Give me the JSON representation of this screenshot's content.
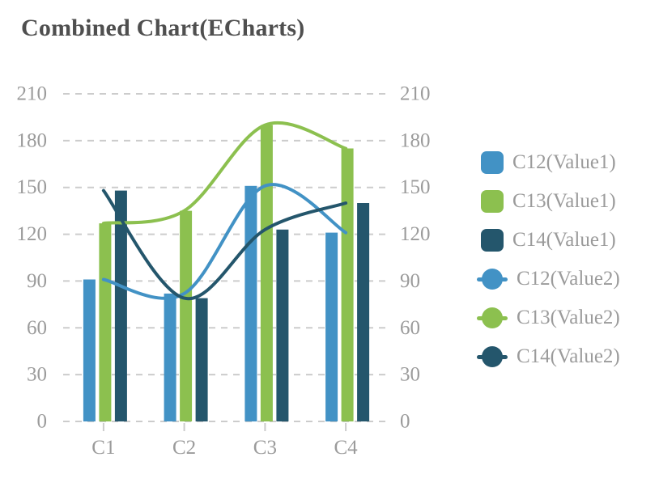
{
  "title": "Combined Chart(ECharts)",
  "colors": {
    "blue": "#4292c5",
    "green": "#8cc04f",
    "dark_teal": "#24566c",
    "grid": "#cccccc",
    "axis_text": "#9b9b9b",
    "title_text": "#4f4f4f"
  },
  "chart_data": {
    "type": "bar+line combo",
    "title": "Combined Chart(ECharts)",
    "categories": [
      "C1",
      "C2",
      "C3",
      "C4"
    ],
    "series": [
      {
        "name": "C12(Value1)",
        "type": "bar",
        "color": "#4292c5",
        "values": [
          91,
          82,
          151,
          121
        ]
      },
      {
        "name": "C13(Value1)",
        "type": "bar",
        "color": "#8cc04f",
        "values": [
          127,
          135,
          190,
          175
        ]
      },
      {
        "name": "C14(Value1)",
        "type": "bar",
        "color": "#24566c",
        "values": [
          148,
          79,
          123,
          140
        ]
      },
      {
        "name": "C12(Value2)",
        "type": "line",
        "color": "#4292c5",
        "values": [
          91,
          82,
          151,
          121
        ],
        "smooth": true
      },
      {
        "name": "C13(Value2)",
        "type": "line",
        "color": "#8cc04f",
        "values": [
          127,
          135,
          190,
          175
        ],
        "smooth": true
      },
      {
        "name": "C14(Value2)",
        "type": "line",
        "color": "#24566c",
        "values": [
          148,
          79,
          123,
          140
        ],
        "smooth": true
      }
    ],
    "yAxis": {
      "min": 0,
      "max": 210,
      "ticks": [
        0,
        30,
        60,
        90,
        120,
        150,
        180,
        210
      ],
      "dual": true
    },
    "xlabel": "",
    "ylabel": "",
    "grid": {
      "dashed": true,
      "horizontal_only": true
    },
    "legend_position": "right"
  },
  "legend": {
    "items": [
      {
        "label": "C12(Value1)",
        "symbol": "rounded-square",
        "color": "#4292c5"
      },
      {
        "label": "C13(Value1)",
        "symbol": "rounded-square",
        "color": "#8cc04f"
      },
      {
        "label": "C14(Value1)",
        "symbol": "rounded-square",
        "color": "#24566c"
      },
      {
        "label": "C12(Value2)",
        "symbol": "line-circle",
        "color": "#4292c5"
      },
      {
        "label": "C13(Value2)",
        "symbol": "line-circle",
        "color": "#8cc04f"
      },
      {
        "label": "C14(Value2)",
        "symbol": "line-circle",
        "color": "#24566c"
      }
    ]
  }
}
